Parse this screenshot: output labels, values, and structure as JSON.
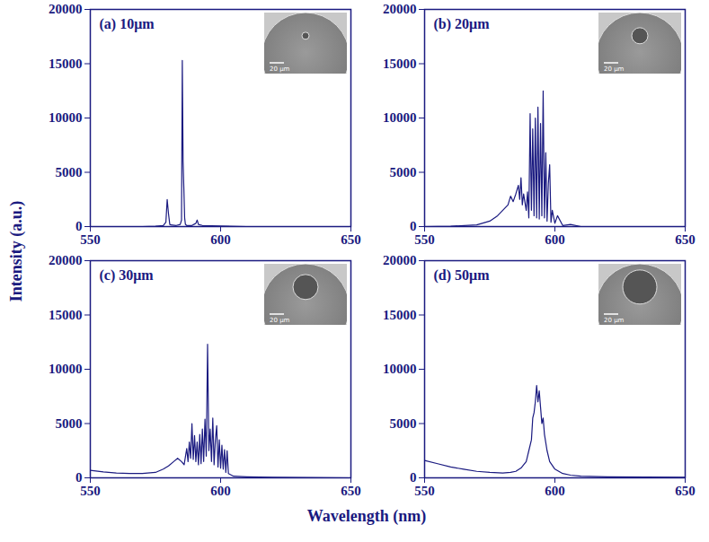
{
  "shared": {
    "x_label": "Wavelength (nm)",
    "y_label": "Intensity (a.u.)"
  },
  "chart_data": [
    {
      "type": "line",
      "title": "(a) 10μm",
      "inset_scale_label": "20 μm",
      "color": "#1a1a80",
      "xlim": [
        550,
        650
      ],
      "xticks": [
        550,
        600,
        650
      ],
      "ylim": [
        0,
        20000
      ],
      "yticks": [
        0,
        5000,
        10000,
        15000,
        20000
      ],
      "x": [
        550,
        570,
        575,
        578,
        579,
        579.5,
        580,
        580.5,
        581,
        583,
        584.5,
        585,
        585.3,
        585.6,
        585.9,
        586.2,
        586.5,
        587,
        589,
        590.5,
        591,
        591.5,
        593,
        600,
        610,
        650
      ],
      "values": [
        0,
        0,
        30,
        100,
        400,
        2500,
        1200,
        200,
        150,
        100,
        200,
        600,
        15300,
        6000,
        3500,
        800,
        200,
        100,
        100,
        300,
        600,
        200,
        100,
        50,
        0,
        0
      ]
    },
    {
      "type": "line",
      "title": "(b) 20μm",
      "inset_scale_label": "20 μm",
      "color": "#1a1a80",
      "xlim": [
        550,
        650
      ],
      "xticks": [
        550,
        600,
        650
      ],
      "ylim": [
        0,
        20000
      ],
      "yticks": [
        0,
        5000,
        10000,
        15000,
        20000
      ],
      "x": [
        550,
        560,
        570,
        575,
        578,
        580,
        582,
        583,
        584,
        585,
        586,
        586.5,
        587,
        587.5,
        588,
        589,
        589.5,
        590,
        590.5,
        591,
        591.5,
        592,
        592.5,
        593,
        593.5,
        594,
        594.5,
        595,
        595.5,
        596,
        596.5,
        597,
        597.5,
        598,
        598.5,
        599,
        600,
        601,
        603,
        606,
        610,
        650
      ],
      "values": [
        0,
        30,
        150,
        500,
        1000,
        1500,
        2000,
        2800,
        2300,
        3000,
        3800,
        2500,
        4500,
        2000,
        3000,
        1500,
        3200,
        800,
        10400,
        1500,
        9000,
        1000,
        10000,
        800,
        11000,
        700,
        9500,
        1000,
        12500,
        800,
        6800,
        500,
        4000,
        5700,
        400,
        1500,
        300,
        1000,
        100,
        200,
        0,
        0
      ]
    },
    {
      "type": "line",
      "title": "(c) 30μm",
      "inset_scale_label": "20 μm",
      "color": "#1a1a80",
      "xlim": [
        550,
        650
      ],
      "xticks": [
        550,
        600,
        650
      ],
      "ylim": [
        0,
        20000
      ],
      "yticks": [
        0,
        5000,
        10000,
        15000,
        20000
      ],
      "x": [
        550,
        555,
        560,
        565,
        570,
        575,
        578,
        580,
        582,
        583.5,
        585,
        586,
        587,
        587.5,
        588,
        588.5,
        589,
        589.5,
        590,
        590.5,
        591,
        591.5,
        592,
        592.5,
        593,
        593.5,
        594,
        594.5,
        595,
        595.5,
        596,
        596.5,
        597,
        597.5,
        598,
        598.5,
        599,
        599.5,
        600,
        600.5,
        601,
        601.5,
        602,
        602.5,
        603,
        605,
        610,
        620,
        650
      ],
      "values": [
        700,
        550,
        450,
        400,
        400,
        500,
        800,
        1100,
        1500,
        1800,
        1500,
        1200,
        2700,
        1500,
        3300,
        1800,
        5000,
        1700,
        3900,
        1500,
        3300,
        1200,
        4000,
        1300,
        4500,
        1500,
        5400,
        2000,
        12300,
        2500,
        4500,
        1500,
        5500,
        1200,
        3500,
        4800,
        1000,
        3500,
        900,
        3000,
        800,
        2600,
        500,
        2500,
        400,
        150,
        100,
        50,
        0
      ]
    },
    {
      "type": "line",
      "title": "(d) 50μm",
      "inset_scale_label": "20 μm",
      "color": "#1a1a80",
      "xlim": [
        550,
        650
      ],
      "xticks": [
        550,
        600,
        650
      ],
      "ylim": [
        0,
        20000
      ],
      "yticks": [
        0,
        5000,
        10000,
        15000,
        20000
      ],
      "x": [
        550,
        555,
        560,
        565,
        570,
        575,
        580,
        583,
        585,
        587,
        589,
        590,
        591,
        591.5,
        592,
        592.5,
        593,
        593.5,
        594,
        594.5,
        595,
        595.5,
        596,
        597,
        598,
        600,
        603,
        606,
        610,
        620,
        650
      ],
      "values": [
        1600,
        1300,
        1000,
        800,
        600,
        500,
        450,
        500,
        600,
        900,
        1500,
        2500,
        3500,
        5500,
        6000,
        7000,
        8500,
        7000,
        8000,
        6500,
        5000,
        5500,
        4000,
        2500,
        1500,
        800,
        400,
        250,
        150,
        100,
        50
      ]
    }
  ]
}
